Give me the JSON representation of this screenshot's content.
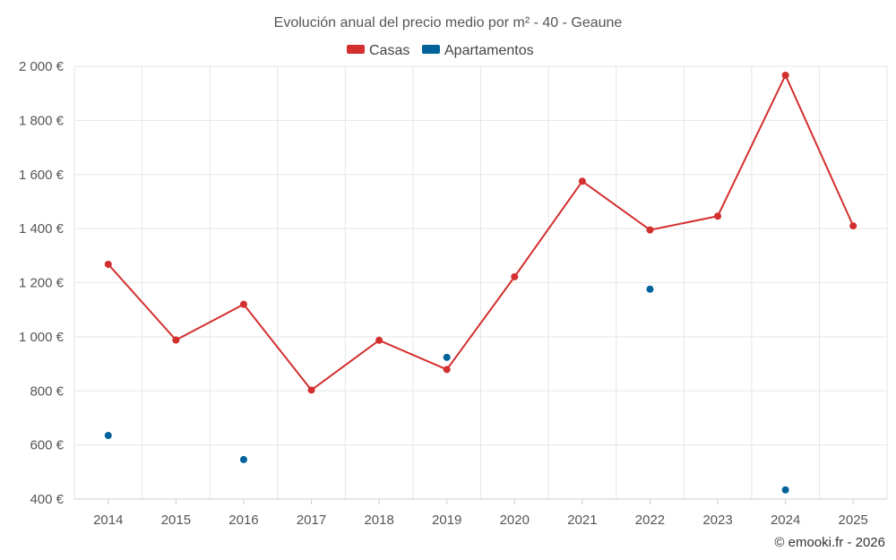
{
  "chart_data": {
    "type": "line",
    "title": "Evolución anual del precio medio por m² - 40 - Geaune",
    "categories": [
      "2014",
      "2015",
      "2016",
      "2017",
      "2018",
      "2019",
      "2020",
      "2021",
      "2022",
      "2023",
      "2024",
      "2025"
    ],
    "ylim": [
      400,
      2000
    ],
    "yticks": [
      400,
      600,
      800,
      1000,
      1200,
      1400,
      1600,
      1800,
      2000
    ],
    "ytick_labels": [
      "400 €",
      "600 €",
      "800 €",
      "1 000 €",
      "1 200 €",
      "1 400 €",
      "1 600 €",
      "1 800 €",
      "2 000 €"
    ],
    "grid": true,
    "legend_position": "top-center",
    "series": [
      {
        "name": "Casas",
        "color": "#d32f2f",
        "line": true,
        "values": [
          1268,
          988,
          1120,
          803,
          987,
          879,
          1222,
          1575,
          1395,
          1446,
          1967,
          1410
        ]
      },
      {
        "name": "Apartamentos",
        "color": "#01639a",
        "line": false,
        "values": [
          635,
          null,
          546,
          null,
          null,
          924,
          null,
          null,
          1176,
          null,
          434,
          null
        ]
      }
    ]
  },
  "credit": "© emooki.fr - 2026"
}
